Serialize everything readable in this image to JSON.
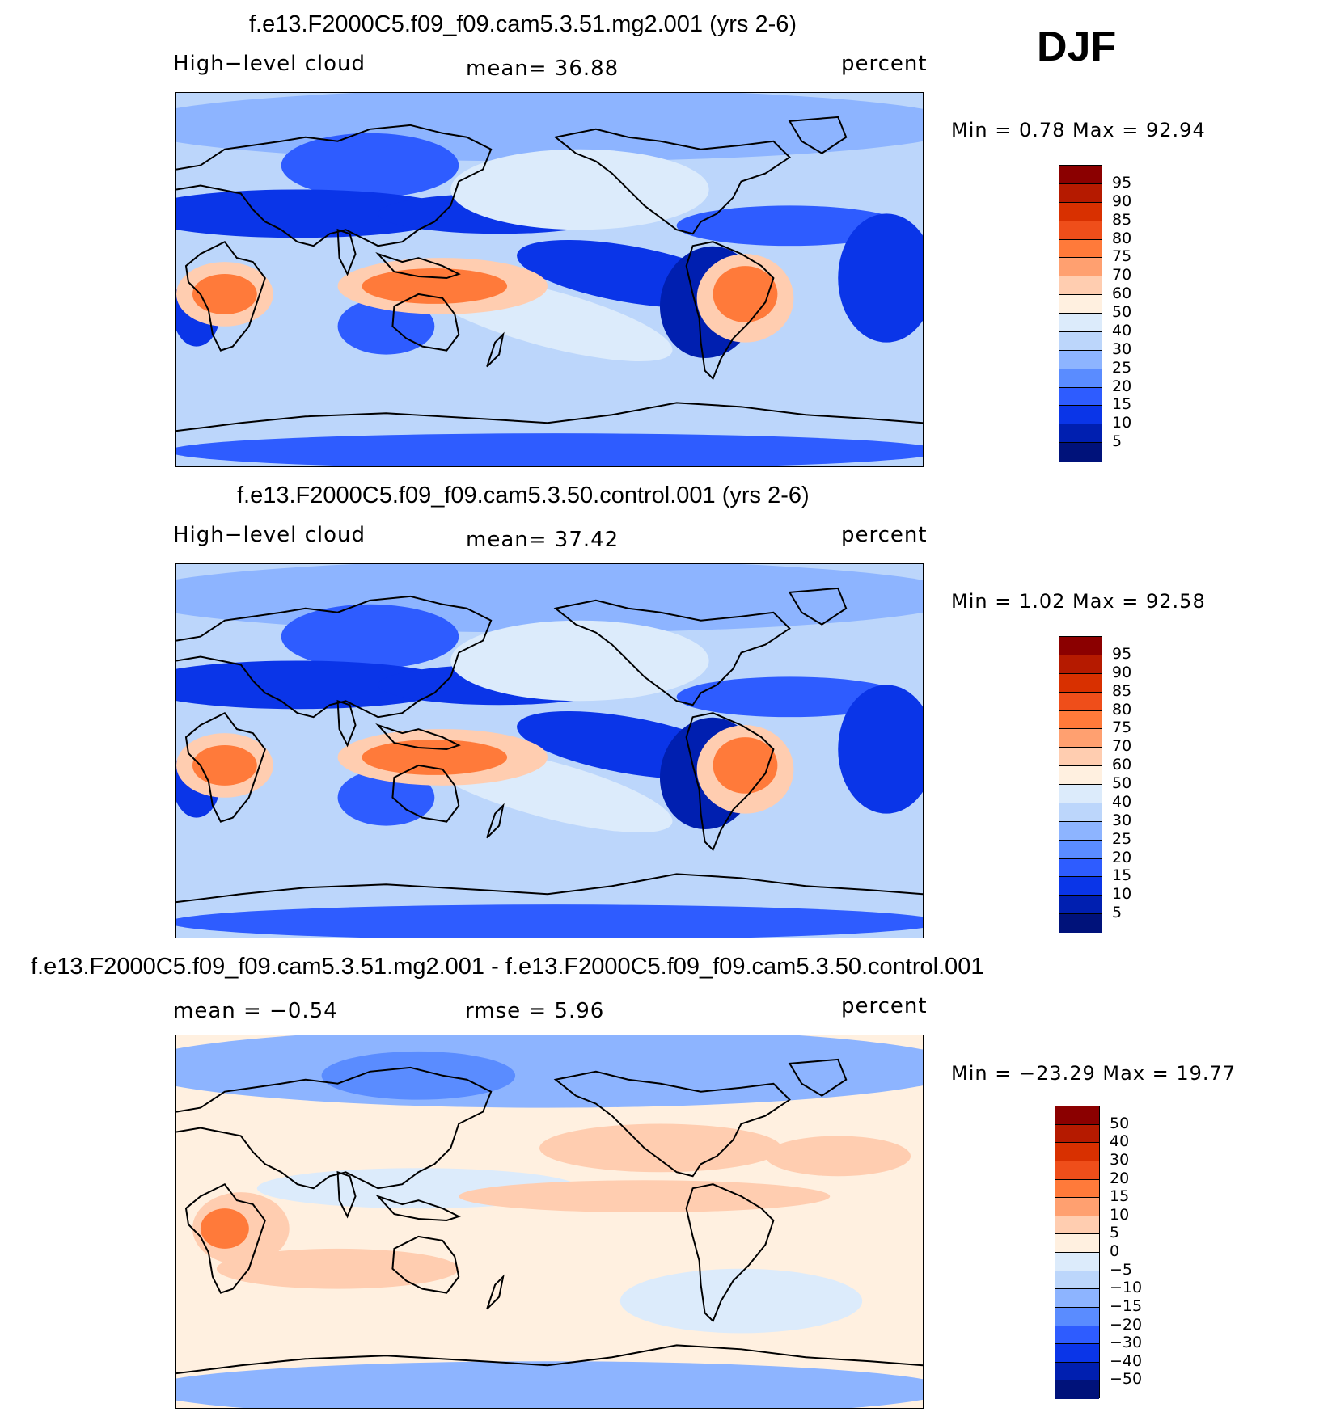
{
  "season": "DJF",
  "panels": [
    {
      "title": "f.e13.F2000C5.f09_f09.cam5.3.51.mg2.001 (yrs 2-6)",
      "left_label": "High−level cloud",
      "center_label": "mean=   36.88",
      "units": "percent",
      "minmax": "Min =    0.78  Max =   92.94",
      "colorbar_labels": [
        "95",
        "90",
        "85",
        "80",
        "75",
        "70",
        "60",
        "50",
        "40",
        "30",
        "25",
        "20",
        "15",
        "10",
        "5"
      ],
      "colorbar_colors": [
        "#8b0000",
        "#b51a00",
        "#d83000",
        "#ef4e1a",
        "#ff7a3a",
        "#ffa070",
        "#ffcdb0",
        "#fff0e0",
        "#dcebfb",
        "#bcd6fb",
        "#8db4ff",
        "#5a8cff",
        "#2e5cff",
        "#0a35e8",
        "#001fb0",
        "#00127a"
      ],
      "style": "mean"
    },
    {
      "title": "f.e13.F2000C5.f09_f09.cam5.3.50.control.001 (yrs 2-6)",
      "left_label": "High−level cloud",
      "center_label": "mean=   37.42",
      "units": "percent",
      "minmax": "Min =    1.02  Max =   92.58",
      "colorbar_labels": [
        "95",
        "90",
        "85",
        "80",
        "75",
        "70",
        "60",
        "50",
        "40",
        "30",
        "25",
        "20",
        "15",
        "10",
        "5"
      ],
      "colorbar_colors": [
        "#8b0000",
        "#b51a00",
        "#d83000",
        "#ef4e1a",
        "#ff7a3a",
        "#ffa070",
        "#ffcdb0",
        "#fff0e0",
        "#dcebfb",
        "#bcd6fb",
        "#8db4ff",
        "#5a8cff",
        "#2e5cff",
        "#0a35e8",
        "#001fb0",
        "#00127a"
      ],
      "style": "mean"
    },
    {
      "title": "f.e13.F2000C5.f09_f09.cam5.3.51.mg2.001 - f.e13.F2000C5.f09_f09.cam5.3.50.control.001",
      "left_label": "mean =   −0.54",
      "center_label": "rmse =    5.96",
      "units": "percent",
      "minmax": "Min = −23.29  Max =   19.77",
      "colorbar_labels": [
        "50",
        "40",
        "30",
        "20",
        "15",
        "10",
        "5",
        "0",
        "−5",
        "−10",
        "−15",
        "−20",
        "−30",
        "−40",
        "−50"
      ],
      "colorbar_colors": [
        "#8b0000",
        "#b51a00",
        "#d83000",
        "#ef4e1a",
        "#ff7a3a",
        "#ffa070",
        "#ffcdb0",
        "#fff0e0",
        "#dcebfb",
        "#bcd6fb",
        "#8db4ff",
        "#5a8cff",
        "#2e5cff",
        "#0a35e8",
        "#001fb0",
        "#00127a"
      ],
      "style": "diff"
    }
  ]
}
